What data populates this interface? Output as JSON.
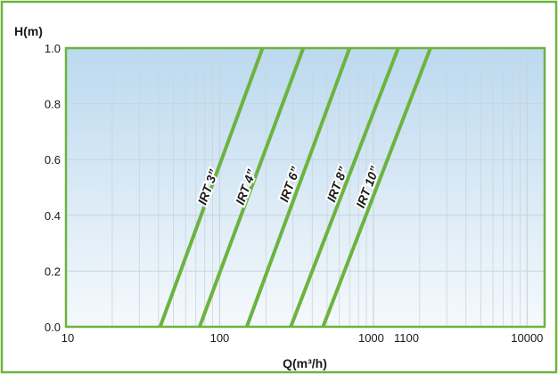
{
  "chart_data": {
    "type": "line",
    "title": "",
    "xlabel": "Q(m³/h)",
    "ylabel": "H(m)",
    "x_scale": "log",
    "xlim": [
      10,
      13000
    ],
    "ylim": [
      0,
      1.0
    ],
    "grid": true,
    "y_ticks": [
      "0.0",
      "0.2",
      "0.4",
      "0.6",
      "0.8",
      "1.0"
    ],
    "y_tick_values": [
      0,
      0.2,
      0.4,
      0.6,
      0.8,
      1.0
    ],
    "x_ticks": [
      "10",
      "100",
      "1000",
      "1100",
      "10000"
    ],
    "x_tick_values": [
      10,
      100,
      1000,
      1100,
      10000
    ],
    "series": [
      {
        "name": "IRT 3”",
        "x": [
          41,
          190
        ],
        "y": [
          0.0,
          1.0
        ],
        "label_at": [
          85,
          0.5
        ]
      },
      {
        "name": "IRT 4”",
        "x": [
          74,
          350
        ],
        "y": [
          0.0,
          1.0
        ],
        "label_at": [
          150,
          0.5
        ]
      },
      {
        "name": "IRT 6”",
        "x": [
          150,
          700
        ],
        "y": [
          0.0,
          1.0
        ],
        "label_at": [
          290,
          0.51
        ]
      },
      {
        "name": "IRT 8”",
        "x": [
          290,
          1450
        ],
        "y": [
          0.0,
          1.0
        ],
        "label_at": [
          590,
          0.51
        ]
      },
      {
        "name": "IRT 10”",
        "x": [
          470,
          2350
        ],
        "y": [
          0.0,
          1.0
        ],
        "label_at": [
          930,
          0.5
        ]
      }
    ],
    "colors": {
      "frame": "#6cb33f",
      "curve": "#6cb33f",
      "grid": "#c9d4dc",
      "bg_top": "#bcd9ef",
      "bg_bottom": "#f5f9fc",
      "text": "#1a1a1a"
    }
  }
}
